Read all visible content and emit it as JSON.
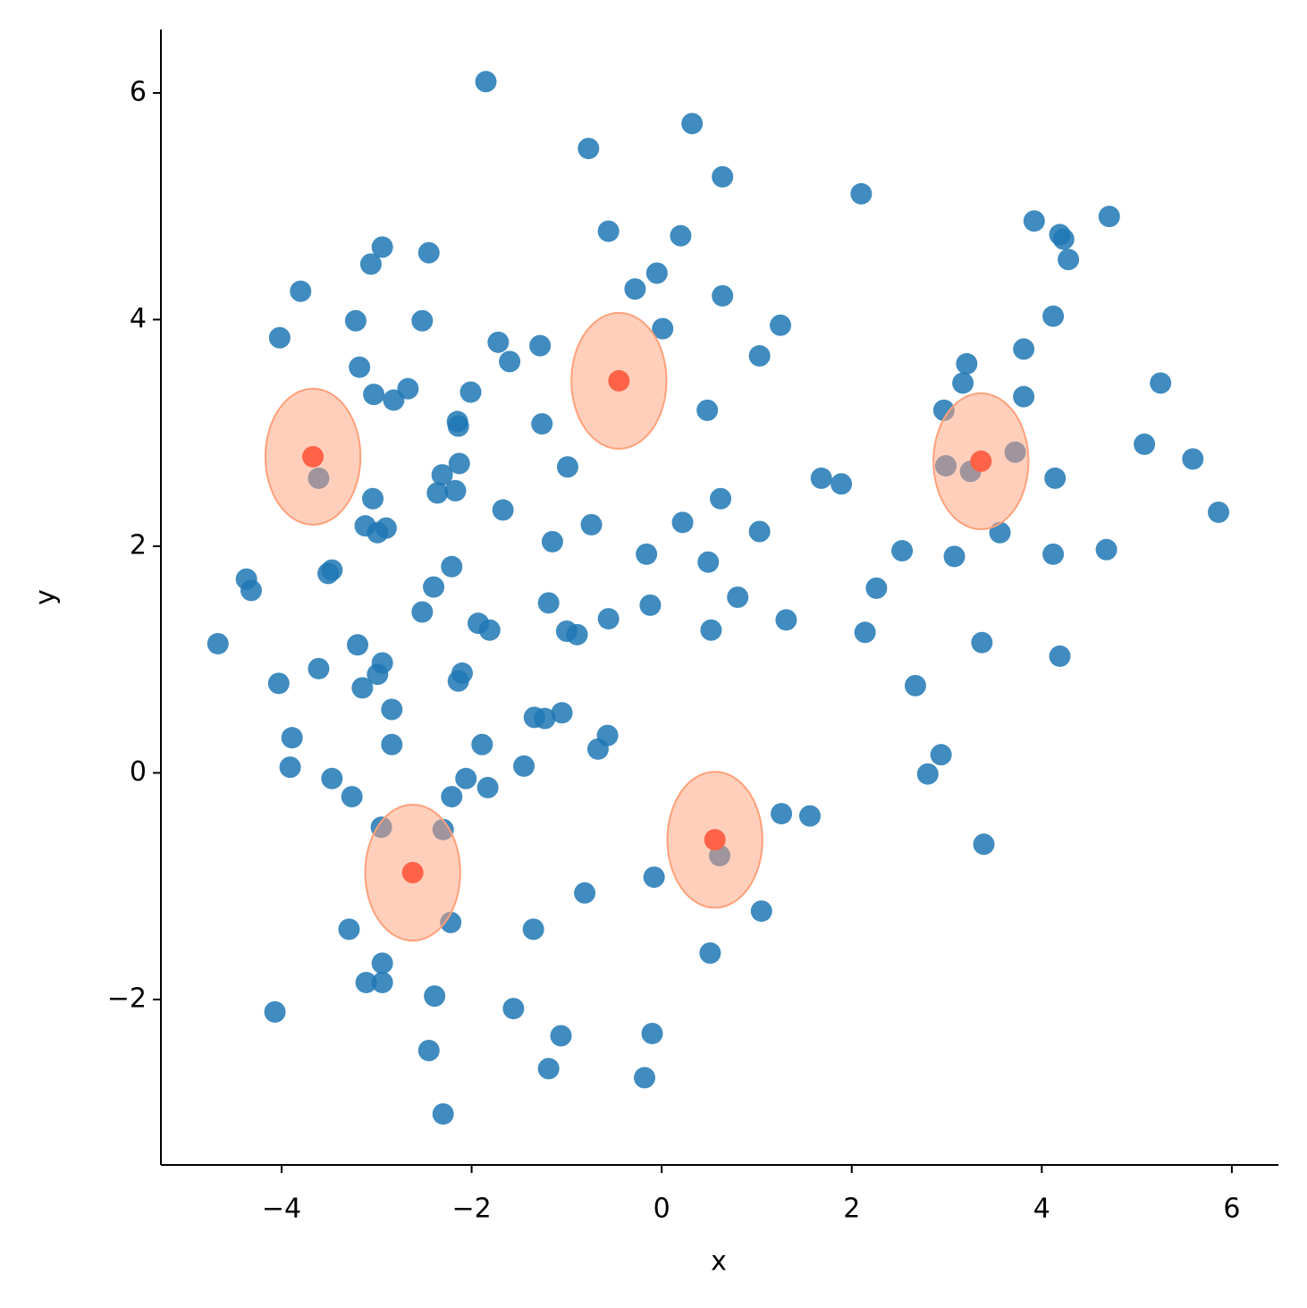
{
  "chart_data": {
    "type": "scatter",
    "xlabel": "x",
    "ylabel": "y",
    "xlim": [
      -5.27,
      6.49
    ],
    "ylim": [
      -3.46,
      6.56
    ],
    "xticks": [
      {
        "value": -4,
        "label": "−4"
      },
      {
        "value": -2,
        "label": "−2"
      },
      0,
      2,
      4,
      6
    ],
    "yticks": [
      {
        "value": -2,
        "label": "−2"
      },
      0,
      2,
      4,
      6
    ],
    "series": [
      {
        "color": "#1f77b4",
        "opacity": 0.85,
        "x": [
          -1.85,
          0.32,
          -0.77,
          0.64,
          2.1,
          4.71,
          3.92,
          4.19,
          4.23,
          4.28,
          -0.56,
          0.2,
          -2.94,
          -2.45,
          -3.06,
          -0.05,
          -0.28,
          -3.8,
          0.64,
          -3.22,
          -2.52,
          4.12,
          1.25,
          0.01,
          -4.02,
          -1.72,
          -1.28,
          3.81,
          1.03,
          -1.6,
          -3.18,
          3.21,
          3.17,
          5.25,
          -2.67,
          -3.03,
          -2.82,
          -2.01,
          3.81,
          0.48,
          2.97,
          -2.15,
          -2.14,
          -1.26,
          5.08,
          3.72,
          5.59,
          -2.13,
          -0.99,
          2.99,
          3.25,
          -2.31,
          -3.61,
          1.68,
          4.14,
          1.89,
          -2.36,
          -2.17,
          -3.04,
          0.62,
          5.86,
          -1.67,
          -0.74,
          0.22,
          -3.12,
          -2.9,
          -2.99,
          1.03,
          3.56,
          -1.15,
          -0.16,
          2.53,
          3.08,
          4.12,
          4.68,
          0.49,
          -2.21,
          -3.47,
          -3.51,
          -4.37,
          -4.32,
          -2.4,
          2.26,
          0.8,
          -1.19,
          -0.12,
          -2.52,
          -0.56,
          1.31,
          -1.93,
          -1.81,
          0.52,
          -1.0,
          -0.89,
          2.14,
          -4.67,
          3.37,
          -3.2,
          4.19,
          -2.94,
          -3.61,
          -2.1,
          -2.99,
          -2.14,
          -4.03,
          -3.15,
          2.67,
          -2.84,
          -1.05,
          -1.34,
          -1.23,
          -0.57,
          -3.89,
          -2.84,
          -1.89,
          -0.67,
          2.94,
          -3.91,
          -1.45,
          2.8,
          -3.47,
          -2.06,
          -1.83,
          -3.26,
          -2.21,
          1.26,
          1.56,
          3.39,
          -2.95,
          -2.3,
          0.61,
          -0.08,
          -0.81,
          1.05,
          -2.22,
          -3.29,
          -1.35,
          0.51,
          -2.94,
          -3.11,
          -2.94,
          -2.39,
          -4.07,
          -1.56,
          -1.06,
          -0.1,
          -2.45,
          -1.19,
          -0.18,
          -2.3
        ],
        "values": [
          6.1,
          5.73,
          5.51,
          5.26,
          5.11,
          4.91,
          4.87,
          4.75,
          4.71,
          4.53,
          4.78,
          4.74,
          4.64,
          4.59,
          4.49,
          4.41,
          4.27,
          4.25,
          4.21,
          3.99,
          3.99,
          4.03,
          3.95,
          3.92,
          3.84,
          3.8,
          3.77,
          3.74,
          3.68,
          3.63,
          3.58,
          3.61,
          3.44,
          3.44,
          3.39,
          3.34,
          3.29,
          3.36,
          3.32,
          3.2,
          3.2,
          3.1,
          3.06,
          3.08,
          2.9,
          2.83,
          2.77,
          2.73,
          2.7,
          2.71,
          2.66,
          2.63,
          2.6,
          2.6,
          2.6,
          2.55,
          2.47,
          2.49,
          2.42,
          2.42,
          2.3,
          2.32,
          2.19,
          2.21,
          2.18,
          2.16,
          2.12,
          2.13,
          2.12,
          2.04,
          1.93,
          1.96,
          1.91,
          1.93,
          1.97,
          1.86,
          1.82,
          1.79,
          1.76,
          1.71,
          1.61,
          1.64,
          1.63,
          1.55,
          1.5,
          1.48,
          1.42,
          1.36,
          1.35,
          1.32,
          1.26,
          1.26,
          1.25,
          1.22,
          1.24,
          1.14,
          1.15,
          1.13,
          1.03,
          0.97,
          0.92,
          0.88,
          0.87,
          0.81,
          0.79,
          0.75,
          0.77,
          0.56,
          0.53,
          0.49,
          0.48,
          0.33,
          0.31,
          0.25,
          0.25,
          0.21,
          0.16,
          0.05,
          0.06,
          -0.01,
          -0.05,
          -0.05,
          -0.13,
          -0.21,
          -0.21,
          -0.36,
          -0.38,
          -0.63,
          -0.48,
          -0.5,
          -0.73,
          -0.92,
          -1.06,
          -1.22,
          -1.32,
          -1.38,
          -1.38,
          -1.59,
          -1.68,
          -1.85,
          -1.85,
          -1.97,
          -2.11,
          -2.08,
          -2.32,
          -2.3,
          -2.45,
          -2.61,
          -2.69,
          -3.01
        ]
      },
      {
        "color": "#ff6347",
        "opacity": 1,
        "ellipse_color": "#ffa07a",
        "ellipse_width": 1,
        "ellipse_height": 1.2,
        "x": [
          -3.67,
          -0.45,
          3.36,
          -2.62,
          0.56
        ],
        "values": [
          2.79,
          3.46,
          2.75,
          -0.88,
          -0.59
        ]
      }
    ]
  }
}
